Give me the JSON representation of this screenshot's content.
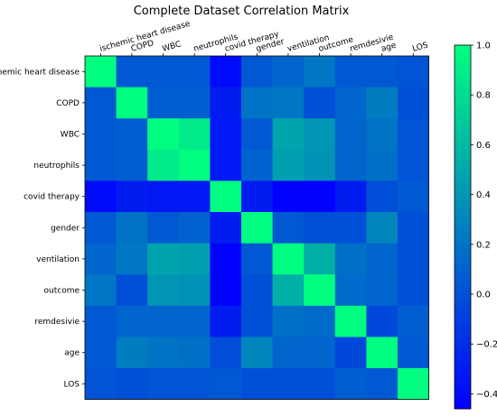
{
  "chart_data": {
    "type": "heatmap",
    "title": "Complete Dataset Correlation Matrix",
    "xlabel": "",
    "ylabel": "",
    "x_categories": [
      "ischemic heart disease",
      "COPD",
      "WBC",
      "neutrophils",
      "covid therapy",
      "gender",
      "ventilation",
      "outcome",
      "remdesivie",
      "age",
      "LOS"
    ],
    "y_categories": [
      "ischemic heart disease",
      "COPD",
      "WBC",
      "neutrophils",
      "covid therapy",
      "gender",
      "ventilation",
      "outcome",
      "remdesivie",
      "age",
      "LOS"
    ],
    "values": [
      [
        1.0,
        0.05,
        0.05,
        0.05,
        -0.4,
        0.05,
        0.12,
        0.22,
        0.05,
        0.05,
        0.02
      ],
      [
        0.05,
        1.0,
        0.08,
        0.08,
        -0.3,
        0.2,
        0.22,
        0.0,
        0.12,
        0.25,
        0.0
      ],
      [
        0.05,
        0.08,
        1.0,
        0.88,
        -0.32,
        0.05,
        0.48,
        0.4,
        0.12,
        0.2,
        0.02
      ],
      [
        0.05,
        0.08,
        0.88,
        1.0,
        -0.32,
        0.1,
        0.45,
        0.38,
        0.12,
        0.18,
        0.02
      ],
      [
        -0.4,
        -0.3,
        -0.32,
        -0.32,
        1.0,
        -0.3,
        -0.45,
        -0.45,
        -0.3,
        -0.02,
        0.05
      ],
      [
        0.05,
        0.2,
        0.05,
        0.1,
        -0.3,
        1.0,
        0.05,
        0.0,
        0.0,
        0.3,
        0.0
      ],
      [
        0.12,
        0.22,
        0.48,
        0.45,
        -0.45,
        0.05,
        1.0,
        0.55,
        0.18,
        0.12,
        0.0
      ],
      [
        0.22,
        0.0,
        0.4,
        0.38,
        -0.45,
        0.0,
        0.55,
        1.0,
        0.15,
        0.12,
        0.0
      ],
      [
        0.05,
        0.12,
        0.12,
        0.12,
        -0.3,
        0.0,
        0.18,
        0.15,
        1.0,
        -0.05,
        0.08
      ],
      [
        0.05,
        0.25,
        0.2,
        0.18,
        -0.02,
        0.3,
        0.12,
        0.12,
        -0.05,
        1.0,
        0.05
      ],
      [
        0.02,
        0.0,
        0.02,
        0.02,
        0.05,
        0.0,
        0.0,
        0.0,
        0.08,
        0.05,
        1.0
      ]
    ],
    "colormap": "winter",
    "colorbar": {
      "min": -0.46,
      "max": 1.0,
      "ticks": [
        -0.4,
        -0.2,
        0.0,
        0.2,
        0.4,
        0.6,
        0.8,
        1.0
      ],
      "tick_labels": [
        "−0.4",
        "−0.2",
        "0.0",
        "0.2",
        "0.4",
        "0.6",
        "0.8",
        "1.0"
      ]
    },
    "grid": false,
    "x_tick_position": "top",
    "colors": {
      "low": "#0000ff",
      "high": "#00ff80"
    }
  }
}
